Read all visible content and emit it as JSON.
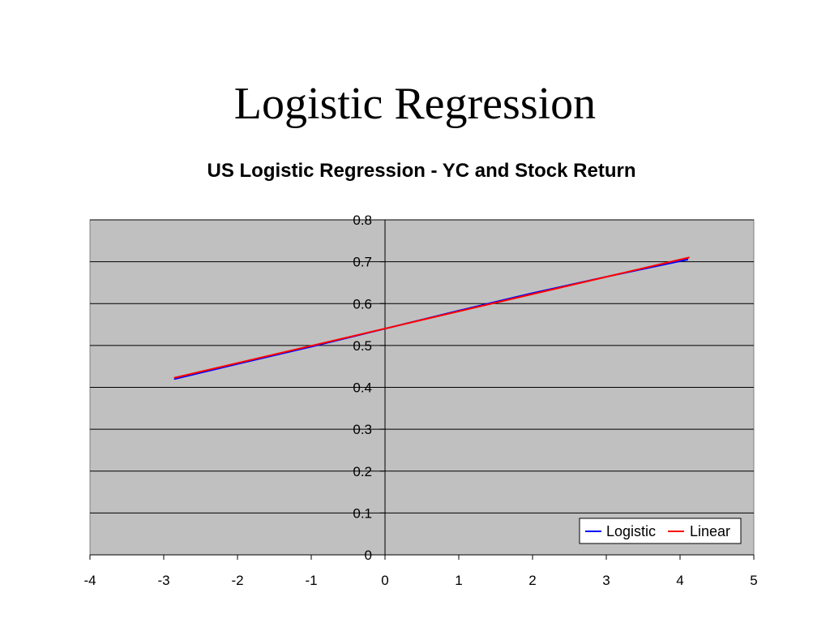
{
  "slide": {
    "title": "Logistic Regression"
  },
  "chart_data": {
    "type": "line",
    "title": "US Logistic Regression - YC and Stock Return",
    "xlabel": "",
    "ylabel": "",
    "xlim": [
      -4,
      5
    ],
    "ylim": [
      0,
      0.8
    ],
    "x_ticks": [
      "-4",
      "-3",
      "-2",
      "-1",
      "0",
      "1",
      "2",
      "3",
      "4",
      "5"
    ],
    "y_ticks": [
      "0",
      "0.1",
      "0.2",
      "0.3",
      "0.4",
      "0.5",
      "0.6",
      "0.7",
      "0.8"
    ],
    "grid": true,
    "plot_background": "#c0c0c0",
    "legend_position": "bottom-right",
    "series": [
      {
        "name": "Logistic",
        "color": "#0000ff",
        "x": [
          -2.85,
          -2.0,
          -1.0,
          0.0,
          1.0,
          2.0,
          3.0,
          4.1
        ],
        "y": [
          0.42,
          0.456,
          0.497,
          0.54,
          0.583,
          0.625,
          0.664,
          0.705
        ]
      },
      {
        "name": "Linear",
        "color": "#ff0000",
        "x": [
          -2.85,
          4.12
        ],
        "y": [
          0.423,
          0.71
        ]
      }
    ]
  }
}
